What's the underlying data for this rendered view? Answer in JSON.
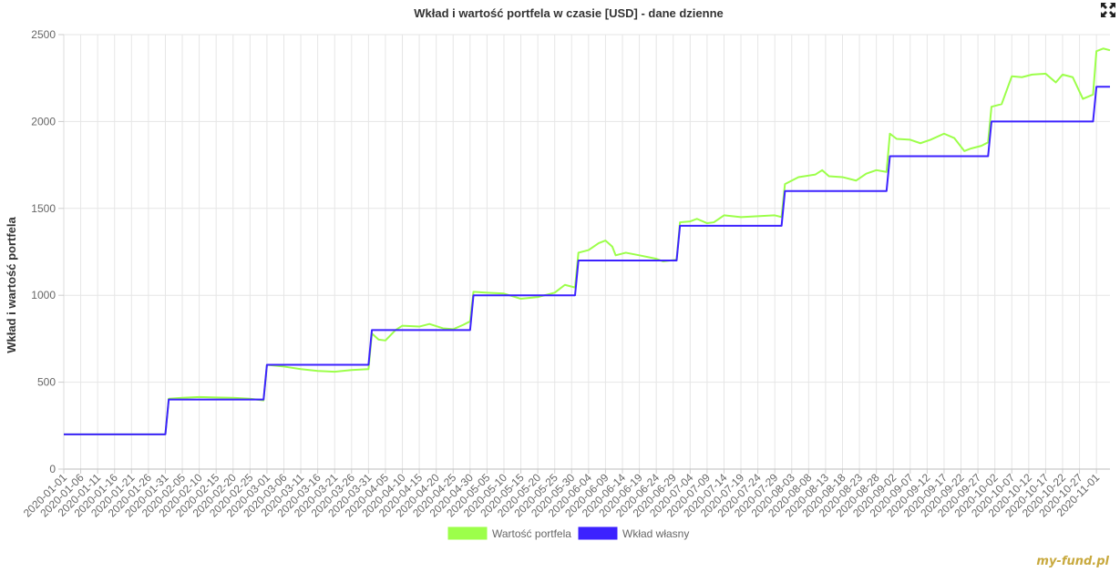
{
  "header": {
    "expand_icon": "fullscreen-icon"
  },
  "watermark": "my-fund.pl",
  "colors": {
    "wartosc": "#9cff4a",
    "wklad": "#3c22ff",
    "grid": "#e6e6e6"
  },
  "chart_data": {
    "type": "line",
    "title": "Wkład i wartość portfela w czasie [USD] - dane dzienne",
    "xlabel": "",
    "ylabel": "Wkład i wartość portfela",
    "ylim": [
      0,
      2500
    ],
    "yticks": [
      0,
      500,
      1000,
      1500,
      2000,
      2500
    ],
    "grid": true,
    "legend_position": "bottom",
    "x_range": [
      "2020-01-01",
      "2020-11-05"
    ],
    "x_tick_labels": [
      "2020-01-01",
      "2020-01-06",
      "2020-01-11",
      "2020-01-16",
      "2020-01-21",
      "2020-01-26",
      "2020-01-31",
      "2020-02-05",
      "2020-02-10",
      "2020-02-15",
      "2020-02-20",
      "2020-02-25",
      "2020-03-01",
      "2020-03-06",
      "2020-03-11",
      "2020-03-16",
      "2020-03-21",
      "2020-03-26",
      "2020-03-31",
      "2020-04-05",
      "2020-04-10",
      "2020-04-15",
      "2020-04-20",
      "2020-04-25",
      "2020-04-30",
      "2020-05-05",
      "2020-05-10",
      "2020-05-15",
      "2020-05-20",
      "2020-05-25",
      "2020-05-30",
      "2020-06-04",
      "2020-06-09",
      "2020-06-14",
      "2020-06-19",
      "2020-06-24",
      "2020-06-29",
      "2020-07-04",
      "2020-07-09",
      "2020-07-14",
      "2020-07-19",
      "2020-07-24",
      "2020-07-29",
      "2020-08-03",
      "2020-08-08",
      "2020-08-13",
      "2020-08-18",
      "2020-08-23",
      "2020-08-28",
      "2020-09-02",
      "2020-09-07",
      "2020-09-12",
      "2020-09-17",
      "2020-09-22",
      "2020-09-27",
      "2020-10-02",
      "2020-10-07",
      "2020-10-12",
      "2020-10-17",
      "2020-10-22",
      "2020-10-27",
      "2020-11-01"
    ],
    "series": [
      {
        "name": "Wartość portfela",
        "color": "#9cff4a",
        "points": [
          [
            "2020-01-01",
            200
          ],
          [
            "2020-01-31",
            200
          ],
          [
            "2020-02-01",
            405
          ],
          [
            "2020-02-05",
            410
          ],
          [
            "2020-02-10",
            415
          ],
          [
            "2020-02-15",
            412
          ],
          [
            "2020-02-20",
            410
          ],
          [
            "2020-02-25",
            405
          ],
          [
            "2020-02-29",
            395
          ],
          [
            "2020-03-01",
            600
          ],
          [
            "2020-03-06",
            590
          ],
          [
            "2020-03-11",
            575
          ],
          [
            "2020-03-16",
            565
          ],
          [
            "2020-03-21",
            560
          ],
          [
            "2020-03-26",
            570
          ],
          [
            "2020-03-31",
            575
          ],
          [
            "2020-04-01",
            780
          ],
          [
            "2020-04-03",
            745
          ],
          [
            "2020-04-05",
            740
          ],
          [
            "2020-04-08",
            800
          ],
          [
            "2020-04-10",
            825
          ],
          [
            "2020-04-15",
            820
          ],
          [
            "2020-04-18",
            835
          ],
          [
            "2020-04-22",
            810
          ],
          [
            "2020-04-25",
            805
          ],
          [
            "2020-04-28",
            830
          ],
          [
            "2020-04-30",
            850
          ],
          [
            "2020-05-01",
            1020
          ],
          [
            "2020-05-05",
            1015
          ],
          [
            "2020-05-10",
            1010
          ],
          [
            "2020-05-15",
            980
          ],
          [
            "2020-05-20",
            990
          ],
          [
            "2020-05-25",
            1015
          ],
          [
            "2020-05-28",
            1060
          ],
          [
            "2020-05-31",
            1045
          ],
          [
            "2020-06-01",
            1245
          ],
          [
            "2020-06-04",
            1260
          ],
          [
            "2020-06-07",
            1300
          ],
          [
            "2020-06-09",
            1315
          ],
          [
            "2020-06-11",
            1280
          ],
          [
            "2020-06-12",
            1230
          ],
          [
            "2020-06-15",
            1245
          ],
          [
            "2020-06-19",
            1230
          ],
          [
            "2020-06-24",
            1210
          ],
          [
            "2020-06-26",
            1195
          ],
          [
            "2020-06-30",
            1205
          ],
          [
            "2020-07-01",
            1420
          ],
          [
            "2020-07-04",
            1425
          ],
          [
            "2020-07-06",
            1440
          ],
          [
            "2020-07-09",
            1415
          ],
          [
            "2020-07-11",
            1420
          ],
          [
            "2020-07-14",
            1460
          ],
          [
            "2020-07-19",
            1450
          ],
          [
            "2020-07-24",
            1455
          ],
          [
            "2020-07-29",
            1460
          ],
          [
            "2020-07-31",
            1450
          ],
          [
            "2020-08-01",
            1640
          ],
          [
            "2020-08-05",
            1680
          ],
          [
            "2020-08-10",
            1695
          ],
          [
            "2020-08-12",
            1720
          ],
          [
            "2020-08-14",
            1685
          ],
          [
            "2020-08-18",
            1680
          ],
          [
            "2020-08-22",
            1660
          ],
          [
            "2020-08-25",
            1700
          ],
          [
            "2020-08-28",
            1720
          ],
          [
            "2020-08-31",
            1710
          ],
          [
            "2020-09-01",
            1930
          ],
          [
            "2020-09-03",
            1900
          ],
          [
            "2020-09-07",
            1895
          ],
          [
            "2020-09-10",
            1875
          ],
          [
            "2020-09-13",
            1895
          ],
          [
            "2020-09-17",
            1930
          ],
          [
            "2020-09-20",
            1905
          ],
          [
            "2020-09-23",
            1830
          ],
          [
            "2020-09-25",
            1845
          ],
          [
            "2020-09-28",
            1860
          ],
          [
            "2020-09-30",
            1880
          ],
          [
            "2020-10-01",
            2085
          ],
          [
            "2020-10-04",
            2100
          ],
          [
            "2020-10-07",
            2260
          ],
          [
            "2020-10-10",
            2255
          ],
          [
            "2020-10-13",
            2270
          ],
          [
            "2020-10-17",
            2275
          ],
          [
            "2020-10-20",
            2225
          ],
          [
            "2020-10-22",
            2270
          ],
          [
            "2020-10-25",
            2255
          ],
          [
            "2020-10-28",
            2130
          ],
          [
            "2020-10-31",
            2155
          ],
          [
            "2020-11-01",
            2405
          ],
          [
            "2020-11-03",
            2420
          ],
          [
            "2020-11-05",
            2410
          ]
        ]
      },
      {
        "name": "Wkład własny",
        "color": "#3c22ff",
        "points": [
          [
            "2020-01-01",
            200
          ],
          [
            "2020-01-31",
            200
          ],
          [
            "2020-02-01",
            400
          ],
          [
            "2020-02-29",
            400
          ],
          [
            "2020-03-01",
            600
          ],
          [
            "2020-03-31",
            600
          ],
          [
            "2020-04-01",
            800
          ],
          [
            "2020-04-30",
            800
          ],
          [
            "2020-05-01",
            1000
          ],
          [
            "2020-05-31",
            1000
          ],
          [
            "2020-06-01",
            1200
          ],
          [
            "2020-06-30",
            1200
          ],
          [
            "2020-07-01",
            1400
          ],
          [
            "2020-07-31",
            1400
          ],
          [
            "2020-08-01",
            1600
          ],
          [
            "2020-08-31",
            1600
          ],
          [
            "2020-09-01",
            1800
          ],
          [
            "2020-09-30",
            1800
          ],
          [
            "2020-10-01",
            2000
          ],
          [
            "2020-10-31",
            2000
          ],
          [
            "2020-11-01",
            2200
          ],
          [
            "2020-11-05",
            2200
          ]
        ]
      }
    ]
  }
}
